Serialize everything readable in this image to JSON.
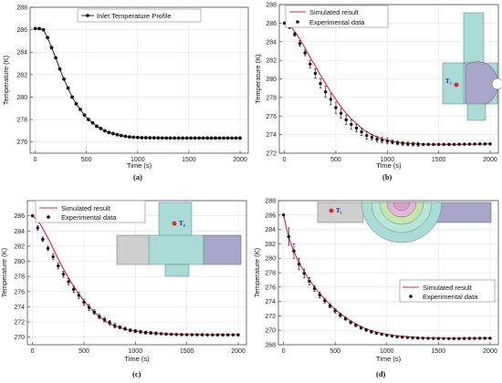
{
  "colors": {
    "sim": "#e8202a",
    "exp": "#111111",
    "grid": "#dddddd",
    "pipe": "#a9dcd6",
    "inlet": "#a8a6c8",
    "outlet": "#c8c8c8"
  },
  "chart_data": [
    {
      "id": "a",
      "panel_label": "(a)",
      "type": "line",
      "xlabel": "Time (s)",
      "ylabel": "Temperature (K)",
      "xlim": [
        -50,
        2080
      ],
      "ylim": [
        275,
        288
      ],
      "xticks": [
        0,
        500,
        1000,
        1500,
        2000
      ],
      "yticks": [
        276,
        278,
        280,
        282,
        284,
        286,
        288
      ],
      "grid": true,
      "legend_position": "top-right",
      "series": [
        {
          "name": "Inlet Temperature Profile",
          "style": "line-dot",
          "x": [
            0,
            40,
            80,
            120,
            160,
            200,
            240,
            280,
            320,
            360,
            400,
            440,
            480,
            520,
            560,
            600,
            640,
            680,
            720,
            760,
            800,
            840,
            880,
            920,
            960,
            1000,
            1040,
            1080,
            1120,
            1160,
            1200,
            1240,
            1280,
            1320,
            1360,
            1400,
            1440,
            1480,
            1520,
            1560,
            1600,
            1640,
            1680,
            1720,
            1760,
            1800,
            1840,
            1880,
            1920,
            1960,
            2000
          ],
          "y": [
            286.1,
            286.1,
            286.0,
            285.3,
            284.4,
            283.5,
            282.5,
            281.6,
            280.8,
            280.0,
            279.4,
            278.9,
            278.4,
            278.0,
            277.7,
            277.4,
            277.2,
            277.0,
            276.85,
            276.75,
            276.65,
            276.57,
            276.5,
            276.45,
            276.42,
            276.4,
            276.38,
            276.38,
            276.37,
            276.37,
            276.36,
            276.36,
            276.35,
            276.35,
            276.35,
            276.35,
            276.35,
            276.35,
            276.35,
            276.35,
            276.35,
            276.35,
            276.35,
            276.35,
            276.35,
            276.35,
            276.35,
            276.35,
            276.35,
            276.35,
            276.35
          ]
        }
      ]
    },
    {
      "id": "b",
      "panel_label": "(b)",
      "type": "line",
      "xlabel": "Time (s)",
      "ylabel": "Temperature (K)",
      "xlim": [
        -50,
        2080
      ],
      "ylim": [
        272,
        288
      ],
      "xticks": [
        0,
        500,
        1000,
        1500,
        2000
      ],
      "yticks": [
        272,
        274,
        276,
        278,
        280,
        282,
        284,
        286,
        288
      ],
      "grid": true,
      "legend_position": "top-right",
      "sensor_label": "T₂",
      "series": [
        {
          "name": "Simulated result",
          "style": "line",
          "x": [
            0,
            40,
            80,
            120,
            160,
            200,
            250,
            300,
            350,
            400,
            450,
            500,
            550,
            600,
            650,
            700,
            750,
            800,
            850,
            900,
            950,
            1000,
            1050,
            1100,
            1150,
            1200,
            1300,
            1400,
            1500,
            1600,
            1700,
            1800,
            1900,
            2000
          ],
          "y": [
            286.0,
            285.8,
            285.4,
            284.8,
            284.1,
            283.3,
            282.3,
            281.4,
            280.4,
            279.5,
            278.6,
            277.8,
            277.0,
            276.3,
            275.7,
            275.2,
            274.7,
            274.3,
            274.0,
            273.75,
            273.55,
            273.4,
            273.28,
            273.2,
            273.12,
            273.06,
            273.0,
            272.96,
            272.95,
            272.95,
            272.95,
            272.96,
            272.98,
            273.0
          ]
        },
        {
          "name": "Experimental data",
          "style": "markers",
          "x": [
            0,
            50,
            100,
            150,
            200,
            250,
            300,
            350,
            400,
            450,
            500,
            550,
            600,
            650,
            700,
            750,
            800,
            850,
            900,
            950,
            1000,
            1050,
            1100,
            1150,
            1200,
            1250,
            1300,
            1350,
            1400,
            1450,
            1500,
            1550,
            1600,
            1650,
            1700,
            1750,
            1800,
            1850,
            1900,
            1950,
            2000
          ],
          "y": [
            286.0,
            285.6,
            284.8,
            283.8,
            282.8,
            281.6,
            280.6,
            279.5,
            278.6,
            277.8,
            276.9,
            276.3,
            275.6,
            275.1,
            274.7,
            274.3,
            273.9,
            273.7,
            273.5,
            273.4,
            273.3,
            273.2,
            273.1,
            273.05,
            273.0,
            272.98,
            272.96,
            272.95,
            272.95,
            272.95,
            272.95,
            272.95,
            272.95,
            272.95,
            272.96,
            272.97,
            272.98,
            272.99,
            273.0,
            273.0,
            273.0
          ],
          "err": [
            0,
            0.2,
            0.2,
            0.3,
            0.3,
            0.4,
            0.5,
            0.5,
            0.6,
            0.6,
            0.6,
            0.5,
            0.5,
            0.5,
            0.4,
            0.4,
            0.4,
            0.3,
            0.3,
            0.3,
            0.3,
            0.2,
            0.2,
            0.2,
            0.2,
            0.2,
            0.2,
            0.1,
            0.1,
            0.1,
            0.1,
            0.1,
            0.1,
            0.1,
            0.1,
            0.1,
            0.1,
            0.1,
            0.1,
            0.1,
            0.1
          ]
        }
      ]
    },
    {
      "id": "c",
      "panel_label": "(c)",
      "type": "line",
      "xlabel": "Time (s)",
      "ylabel": "Temperature (K)",
      "xlim": [
        -50,
        2080
      ],
      "ylim": [
        269,
        288
      ],
      "xticks": [
        0,
        500,
        1000,
        1500,
        2000
      ],
      "yticks": [
        270,
        272,
        274,
        276,
        278,
        280,
        282,
        284,
        286
      ],
      "grid": true,
      "legend_position": "top-left",
      "sensor_label": "T₄",
      "series": [
        {
          "name": "Simulated result",
          "style": "line",
          "x": [
            0,
            40,
            80,
            120,
            160,
            200,
            250,
            300,
            350,
            400,
            450,
            500,
            550,
            600,
            650,
            700,
            750,
            800,
            850,
            900,
            950,
            1000,
            1050,
            1100,
            1150,
            1200,
            1300,
            1400,
            1500,
            1600,
            1700,
            1800,
            1900,
            2000
          ],
          "y": [
            286.0,
            285.5,
            284.8,
            283.8,
            282.8,
            281.7,
            280.3,
            279.0,
            277.8,
            276.7,
            275.7,
            274.8,
            274.0,
            273.3,
            272.7,
            272.2,
            271.8,
            271.5,
            271.25,
            271.05,
            270.9,
            270.8,
            270.7,
            270.62,
            270.55,
            270.5,
            270.42,
            270.37,
            270.35,
            270.33,
            270.32,
            270.32,
            270.32,
            270.33
          ]
        },
        {
          "name": "Experimental data",
          "style": "markers",
          "x": [
            0,
            50,
            100,
            150,
            200,
            250,
            300,
            350,
            400,
            450,
            500,
            550,
            600,
            650,
            700,
            750,
            800,
            850,
            900,
            950,
            1000,
            1050,
            1100,
            1150,
            1200,
            1250,
            1300,
            1350,
            1400,
            1450,
            1500,
            1550,
            1600,
            1650,
            1700,
            1750,
            1800,
            1850,
            1900,
            1950,
            2000
          ],
          "y": [
            286.0,
            284.4,
            282.9,
            281.7,
            280.6,
            279.4,
            278.3,
            277.3,
            276.3,
            275.5,
            274.6,
            273.9,
            273.3,
            272.7,
            272.3,
            271.9,
            271.5,
            271.3,
            271.1,
            270.9,
            270.8,
            270.7,
            270.6,
            270.55,
            270.5,
            270.45,
            270.4,
            270.37,
            270.35,
            270.33,
            270.32,
            270.32,
            270.31,
            270.31,
            270.3,
            270.3,
            270.3,
            270.3,
            270.3,
            270.3,
            270.3
          ],
          "err": [
            0,
            0.3,
            0.3,
            0.3,
            0.4,
            0.4,
            0.4,
            0.4,
            0.4,
            0.4,
            0.4,
            0.4,
            0.3,
            0.3,
            0.3,
            0.3,
            0.3,
            0.2,
            0.2,
            0.2,
            0.2,
            0.2,
            0.2,
            0.2,
            0.2,
            0.1,
            0.1,
            0.1,
            0.1,
            0.1,
            0.1,
            0.1,
            0.1,
            0.1,
            0.1,
            0.1,
            0.1,
            0.1,
            0.1,
            0.1,
            0.1
          ]
        }
      ]
    },
    {
      "id": "d",
      "panel_label": "(d)",
      "type": "line",
      "xlabel": "Time (s)",
      "ylabel": "Temperature (K)",
      "xlim": [
        -50,
        2080
      ],
      "ylim": [
        268,
        288
      ],
      "xticks": [
        0,
        500,
        1000,
        1500,
        2000
      ],
      "yticks": [
        268,
        270,
        272,
        274,
        276,
        278,
        280,
        282,
        284,
        286,
        288
      ],
      "grid": true,
      "legend_position": "bottom-right",
      "sensor_label": "T₁",
      "series": [
        {
          "name": "Simulated result",
          "style": "line",
          "x": [
            0,
            30,
            60,
            90,
            120,
            150,
            200,
            250,
            300,
            350,
            400,
            450,
            500,
            550,
            600,
            650,
            700,
            750,
            800,
            850,
            900,
            950,
            1000,
            1100,
            1200,
            1300,
            1400,
            1500,
            1600,
            1700,
            1800,
            1900,
            2000
          ],
          "y": [
            286.0,
            284.0,
            282.5,
            281.3,
            280.3,
            279.4,
            278.1,
            277.0,
            276.0,
            275.1,
            274.3,
            273.6,
            272.9,
            272.3,
            271.8,
            271.3,
            270.9,
            270.5,
            270.2,
            269.95,
            269.75,
            269.6,
            269.45,
            269.25,
            269.1,
            269.0,
            268.95,
            268.92,
            268.9,
            268.9,
            268.9,
            268.9,
            268.92
          ]
        },
        {
          "name": "Experimental data",
          "style": "markers",
          "x": [
            0,
            50,
            100,
            150,
            200,
            250,
            300,
            350,
            400,
            450,
            500,
            550,
            600,
            650,
            700,
            750,
            800,
            850,
            900,
            950,
            1000,
            1050,
            1100,
            1150,
            1200,
            1250,
            1300,
            1350,
            1400,
            1450,
            1500,
            1550,
            1600,
            1650,
            1700,
            1750,
            1800,
            1850,
            1900,
            1950,
            2000
          ],
          "y": [
            286.0,
            283.0,
            281.0,
            279.2,
            277.9,
            276.8,
            275.8,
            274.9,
            274.1,
            273.4,
            272.7,
            272.1,
            271.6,
            271.1,
            270.7,
            270.35,
            270.05,
            269.8,
            269.6,
            269.45,
            269.3,
            269.2,
            269.1,
            269.05,
            269.0,
            268.95,
            268.92,
            268.9,
            268.88,
            268.87,
            268.86,
            268.85,
            268.85,
            268.85,
            268.85,
            268.86,
            268.87,
            268.88,
            268.89,
            268.9,
            268.9
          ],
          "err": [
            0,
            1.2,
            1.0,
            0.8,
            0.6,
            0.5,
            0.4,
            0.4,
            0.3,
            0.3,
            0.3,
            0.3,
            0.2,
            0.2,
            0.2,
            0.2,
            0.2,
            0.2,
            0.1,
            0.1,
            0.1,
            0.1,
            0.1,
            0.1,
            0.1,
            0.1,
            0.1,
            0.1,
            0.1,
            0.1,
            0.1,
            0.1,
            0.1,
            0.1,
            0.1,
            0.1,
            0.1,
            0.1,
            0.1,
            0.1,
            0.1
          ]
        }
      ]
    }
  ]
}
